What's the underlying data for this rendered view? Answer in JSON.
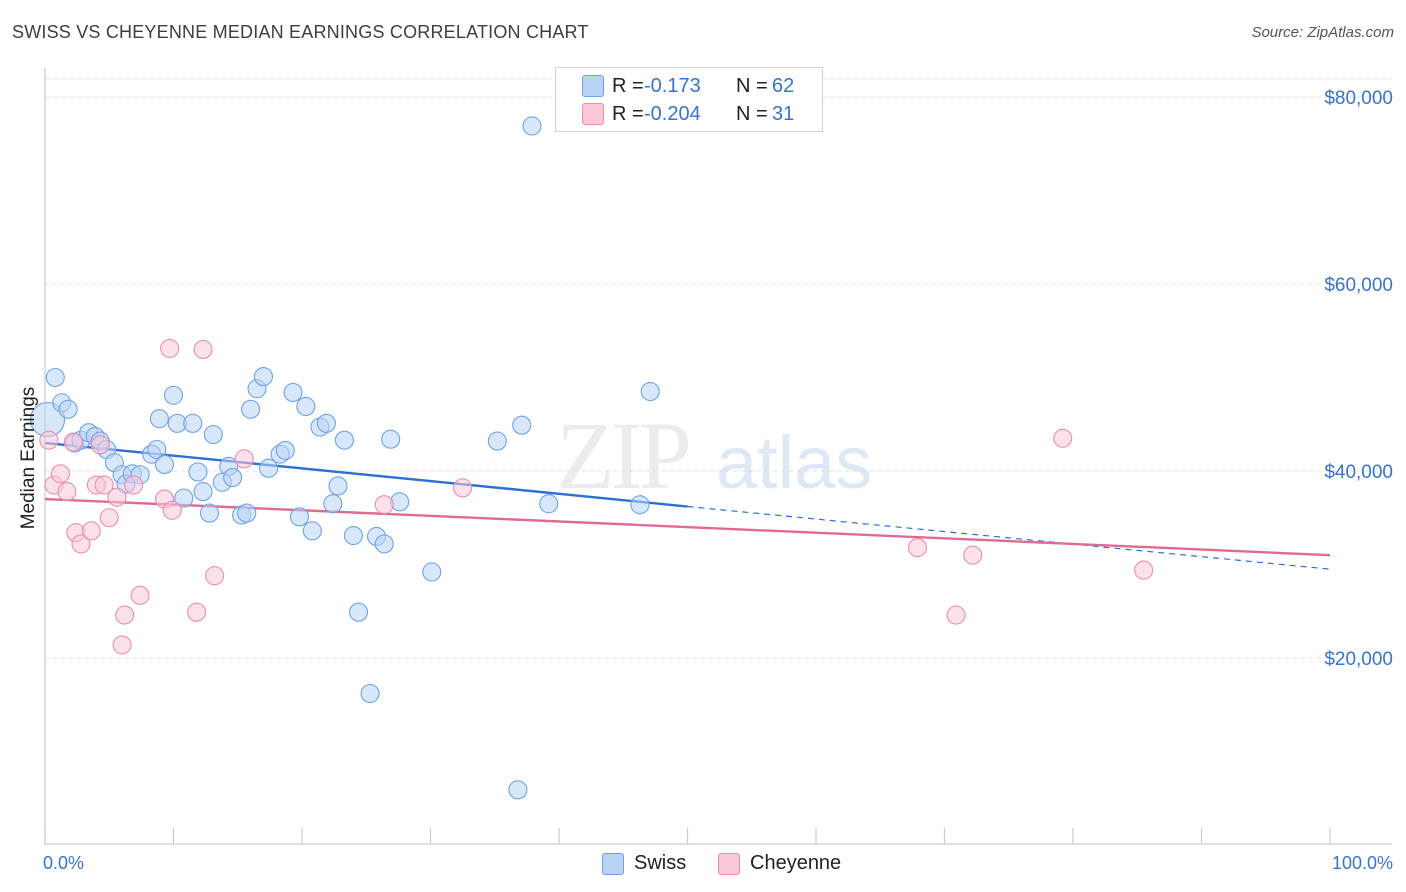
{
  "header": {
    "title": "SWISS VS CHEYENNE MEDIAN EARNINGS CORRELATION CHART",
    "source": "Source: ZipAtlas.com"
  },
  "legend": {
    "rows": [
      {
        "r_label": "R =",
        "r_value": "-0.173",
        "n_label": "N =",
        "n_value": "62",
        "color": "#6fa3e6",
        "fill": "#b9d3f5"
      },
      {
        "r_label": "R =",
        "r_value": "-0.204",
        "n_label": "N =",
        "n_value": "31",
        "color": "#e88fae",
        "fill": "#f9c9d8"
      }
    ]
  },
  "bottom_legend": {
    "swiss": "Swiss",
    "cheyenne": "Cheyenne"
  },
  "watermark": {
    "zip": "ZIP",
    "atlas": "atlas"
  },
  "chart_data": {
    "type": "scatter",
    "title": "SWISS VS CHEYENNE MEDIAN EARNINGS CORRELATION CHART",
    "xlabel": "",
    "ylabel": "Median Earnings",
    "xlim": [
      0,
      100
    ],
    "ylim": [
      0,
      80000
    ],
    "x_tick_labels": [
      "0.0%",
      "100.0%"
    ],
    "y_ticks": [
      20000,
      40000,
      60000,
      80000
    ],
    "y_tick_labels": [
      "$20,000",
      "$40,000",
      "$60,000",
      "$80,000"
    ],
    "grid": true,
    "series": [
      {
        "name": "Swiss",
        "color": "#6fa3e6",
        "fill": "#b9d3f5",
        "line_color": "#2f6fd0",
        "trend": {
          "x0": 0,
          "y0": 43000,
          "x1": 50,
          "y1": 36200,
          "dash_to_x": 100,
          "dash_to_y": 29500
        },
        "points": [
          [
            0.2,
            45500
          ],
          [
            0.8,
            50000
          ],
          [
            1.3,
            47300
          ],
          [
            1.8,
            46600
          ],
          [
            2.3,
            43000
          ],
          [
            2.8,
            43300
          ],
          [
            3.4,
            44100
          ],
          [
            3.9,
            43700
          ],
          [
            4.3,
            43200
          ],
          [
            4.8,
            42300
          ],
          [
            5.4,
            40900
          ],
          [
            6.0,
            39600
          ],
          [
            6.3,
            38600
          ],
          [
            6.8,
            39700
          ],
          [
            7.4,
            39600
          ],
          [
            8.3,
            41800
          ],
          [
            8.7,
            42300
          ],
          [
            8.9,
            45600
          ],
          [
            9.3,
            40700
          ],
          [
            10.0,
            48100
          ],
          [
            10.3,
            45100
          ],
          [
            10.8,
            37100
          ],
          [
            11.5,
            45100
          ],
          [
            11.9,
            39900
          ],
          [
            12.3,
            37800
          ],
          [
            12.8,
            35500
          ],
          [
            13.1,
            43900
          ],
          [
            13.8,
            38800
          ],
          [
            14.3,
            40500
          ],
          [
            14.6,
            39300
          ],
          [
            15.3,
            35300
          ],
          [
            15.7,
            35500
          ],
          [
            16.0,
            46600
          ],
          [
            16.5,
            48800
          ],
          [
            17.0,
            50100
          ],
          [
            17.4,
            40300
          ],
          [
            18.3,
            41800
          ],
          [
            18.7,
            42200
          ],
          [
            19.3,
            48400
          ],
          [
            19.8,
            35100
          ],
          [
            20.3,
            46900
          ],
          [
            20.8,
            33600
          ],
          [
            21.4,
            44700
          ],
          [
            21.9,
            45100
          ],
          [
            22.4,
            36500
          ],
          [
            22.8,
            38400
          ],
          [
            23.3,
            43300
          ],
          [
            24.0,
            33100
          ],
          [
            24.4,
            24900
          ],
          [
            25.3,
            16200
          ],
          [
            25.8,
            33000
          ],
          [
            26.4,
            32200
          ],
          [
            26.9,
            43400
          ],
          [
            27.6,
            36700
          ],
          [
            30.1,
            29200
          ],
          [
            35.2,
            43200
          ],
          [
            36.8,
            5900
          ],
          [
            37.1,
            44900
          ],
          [
            37.9,
            76900
          ],
          [
            39.2,
            36500
          ],
          [
            46.3,
            36400
          ],
          [
            47.1,
            48500
          ]
        ]
      },
      {
        "name": "Cheyenne",
        "color": "#e88fae",
        "fill": "#f9c9d8",
        "line_color": "#e06a96",
        "trend": {
          "x0": 0,
          "y0": 37000,
          "x1": 100,
          "y1": 31000
        },
        "points": [
          [
            0.3,
            43300
          ],
          [
            0.7,
            38500
          ],
          [
            1.2,
            39700
          ],
          [
            1.7,
            37800
          ],
          [
            2.2,
            43100
          ],
          [
            2.4,
            33400
          ],
          [
            2.8,
            32200
          ],
          [
            3.6,
            33600
          ],
          [
            4.0,
            38500
          ],
          [
            4.3,
            42800
          ],
          [
            4.6,
            38500
          ],
          [
            5.0,
            35000
          ],
          [
            5.6,
            37200
          ],
          [
            6.0,
            21400
          ],
          [
            6.2,
            24600
          ],
          [
            6.9,
            38500
          ],
          [
            7.4,
            26700
          ],
          [
            9.3,
            37000
          ],
          [
            9.7,
            53100
          ],
          [
            9.9,
            35800
          ],
          [
            11.8,
            24900
          ],
          [
            12.3,
            53000
          ],
          [
            13.2,
            28800
          ],
          [
            15.5,
            41300
          ],
          [
            26.4,
            36400
          ],
          [
            32.5,
            38200
          ],
          [
            67.9,
            31800
          ],
          [
            70.9,
            24600
          ],
          [
            72.2,
            31000
          ],
          [
            79.2,
            43500
          ],
          [
            85.5,
            29400
          ]
        ]
      }
    ]
  }
}
